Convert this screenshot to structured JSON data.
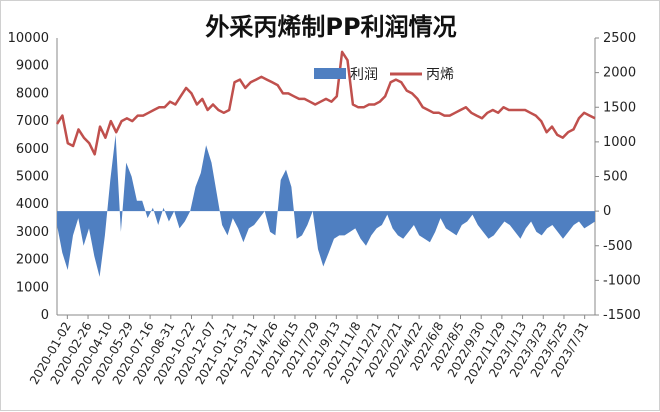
{
  "chart_data": {
    "type": "area+line",
    "title": "外采丙烯制PP利润情况",
    "legend": {
      "position": "top-center",
      "items": [
        "利润",
        "丙烯"
      ]
    },
    "x_tick_labels": [
      "2020-01-02",
      "2020-02-26",
      "2020-04-10",
      "2020-05-29",
      "2020-07-16",
      "2020-08-31",
      "2020-10-22",
      "2020-12-07",
      "2021-01-21",
      "2021-03-11",
      "2021/4/26",
      "2021/6/15",
      "2021/7/29",
      "2021/9/13",
      "2021/11/8",
      "2021/12/21",
      "2022/2/21",
      "2022/4/22",
      "2022/6/8",
      "2022/8/5",
      "2022/9/30",
      "2022/11/29",
      "2023/1/13",
      "2023/3/23",
      "2023/5/25",
      "2023/7/31"
    ],
    "y_left": {
      "ticks": [
        0,
        1000,
        2000,
        3000,
        4000,
        5000,
        6000,
        7000,
        8000,
        9000,
        10000
      ],
      "range": [
        0,
        10000
      ]
    },
    "y_right": {
      "ticks": [
        -1500,
        -1000,
        -500,
        0,
        500,
        1000,
        1500,
        2000,
        2500
      ],
      "range": [
        -1500,
        2500
      ]
    },
    "series": [
      {
        "name": "利润",
        "kind": "area",
        "axis": "right",
        "color": "#4f7fc1",
        "values": [
          -200,
          -600,
          -850,
          -350,
          -100,
          -500,
          -250,
          -650,
          -950,
          -350,
          450,
          1100,
          -300,
          700,
          500,
          150,
          150,
          -100,
          50,
          -200,
          50,
          -150,
          0,
          -250,
          -150,
          0,
          350,
          550,
          950,
          700,
          250,
          -200,
          -350,
          -100,
          -250,
          -450,
          -250,
          -200,
          -100,
          0,
          -300,
          -350,
          450,
          600,
          350,
          -400,
          -350,
          -200,
          0,
          -550,
          -800,
          -600,
          -400,
          -350,
          -350,
          -300,
          -250,
          -400,
          -500,
          -350,
          -250,
          -200,
          -50,
          -250,
          -350,
          -400,
          -300,
          -200,
          -350,
          -400,
          -450,
          -300,
          -100,
          -250,
          -300,
          -350,
          -200,
          -150,
          -50,
          -200,
          -300,
          -400,
          -350,
          -250,
          -150,
          -200,
          -300,
          -400,
          -250,
          -150,
          -300,
          -350,
          -250,
          -200,
          -300,
          -400,
          -300,
          -200,
          -150,
          -250,
          -200,
          -150
        ]
      },
      {
        "name": "丙烯",
        "kind": "line",
        "axis": "left",
        "color": "#c0504d",
        "values": [
          6900,
          7200,
          6200,
          6100,
          6700,
          6400,
          6200,
          5800,
          6800,
          6400,
          7000,
          6600,
          7000,
          7100,
          7000,
          7200,
          7200,
          7300,
          7400,
          7500,
          7500,
          7700,
          7600,
          7900,
          8200,
          8000,
          7600,
          7800,
          7400,
          7600,
          7400,
          7300,
          7400,
          8400,
          8500,
          8200,
          8400,
          8500,
          8600,
          8500,
          8400,
          8300,
          8000,
          8000,
          7900,
          7800,
          7800,
          7700,
          7600,
          7700,
          7800,
          7700,
          7900,
          9500,
          9200,
          7600,
          7500,
          7500,
          7600,
          7600,
          7700,
          7900,
          8400,
          8500,
          8400,
          8100,
          8000,
          7800,
          7500,
          7400,
          7300,
          7300,
          7200,
          7200,
          7300,
          7400,
          7500,
          7300,
          7200,
          7100,
          7300,
          7400,
          7300,
          7500,
          7400,
          7400,
          7400,
          7400,
          7300,
          7200,
          7000,
          6600,
          6800,
          6500,
          6400,
          6600,
          6700,
          7100,
          7300,
          7200,
          7100
        ]
      }
    ]
  }
}
